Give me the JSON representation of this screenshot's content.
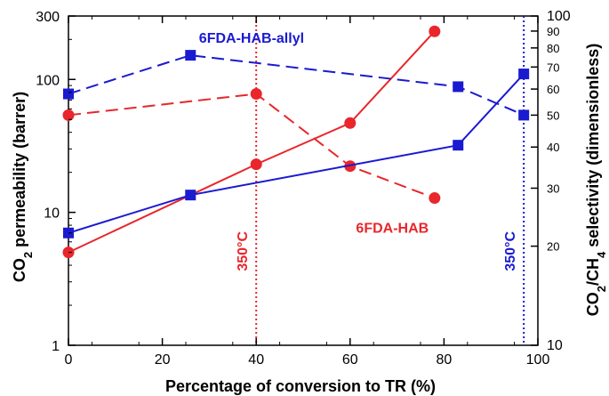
{
  "chart_data": {
    "type": "line",
    "xlabel": "Percentage of conversion to TR (%)",
    "ylabel_left_parts": [
      "CO",
      "2",
      " permeability (barrer)"
    ],
    "ylabel_right_parts": [
      "CO",
      "2",
      "/CH",
      "4",
      " selectivity (dimensionless)"
    ],
    "xlim": [
      0,
      100
    ],
    "ylim_left": [
      1,
      300
    ],
    "ylim_right": [
      10,
      100
    ],
    "yscale_left": "log",
    "yscale_right": "log",
    "x_ticks": [
      0,
      20,
      40,
      60,
      80,
      100
    ],
    "y_left_ticks": [
      {
        "value": 1,
        "label": "1"
      },
      {
        "value": 10,
        "label": "10"
      },
      {
        "value": 100,
        "label": "100"
      },
      {
        "value": 300,
        "label": "300"
      }
    ],
    "y_right_ticks": [
      {
        "value": 10,
        "label": "10"
      },
      {
        "value": 20,
        "label": "20"
      },
      {
        "value": 30,
        "label": "30"
      },
      {
        "value": 40,
        "label": "40"
      },
      {
        "value": 50,
        "label": "50"
      },
      {
        "value": 60,
        "label": "60"
      },
      {
        "value": 70,
        "label": "70"
      },
      {
        "value": 80,
        "label": "80"
      },
      {
        "value": 90,
        "label": "90"
      },
      {
        "value": 100,
        "label": "100"
      }
    ],
    "series": [
      {
        "name": "6FDA-HAB",
        "metric": "CO2 permeability",
        "axis": "left",
        "color": "#e8262b",
        "style": "solid",
        "marker": "circle",
        "x": [
          0,
          40,
          60,
          78
        ],
        "y": [
          5,
          23,
          47,
          230
        ]
      },
      {
        "name": "6FDA-HAB",
        "metric": "CO2/CH4 selectivity",
        "axis": "right",
        "color": "#e8262b",
        "style": "dashed",
        "marker": "circle",
        "x": [
          0,
          40,
          60,
          78
        ],
        "y": [
          50,
          58,
          35,
          28
        ]
      },
      {
        "name": "6FDA-HAB-allyl",
        "metric": "CO2 permeability",
        "axis": "left",
        "color": "#1a1ad0",
        "style": "solid",
        "marker": "square",
        "x": [
          0,
          26,
          83,
          97
        ],
        "y": [
          7,
          13.5,
          32,
          110
        ]
      },
      {
        "name": "6FDA-HAB-allyl",
        "metric": "CO2/CH4 selectivity",
        "axis": "right",
        "color": "#1a1ad0",
        "style": "dashed",
        "marker": "square",
        "x": [
          0,
          26,
          83,
          97
        ],
        "y": [
          58,
          76,
          61,
          50
        ]
      }
    ],
    "annotations": [
      {
        "text": "6FDA-HAB-allyl",
        "color": "#1a1ad0",
        "x": 39,
        "y_right": 83
      },
      {
        "text": "6FDA-HAB",
        "color": "#e8262b",
        "x": 69,
        "y_right": 22
      }
    ],
    "vlines": [
      {
        "x": 40,
        "color": "#e8262b",
        "style": "dotted",
        "label": "350°C"
      },
      {
        "x": 97,
        "color": "#1a1ad0",
        "style": "dotted",
        "label": "350°C"
      }
    ],
    "grid": false
  }
}
